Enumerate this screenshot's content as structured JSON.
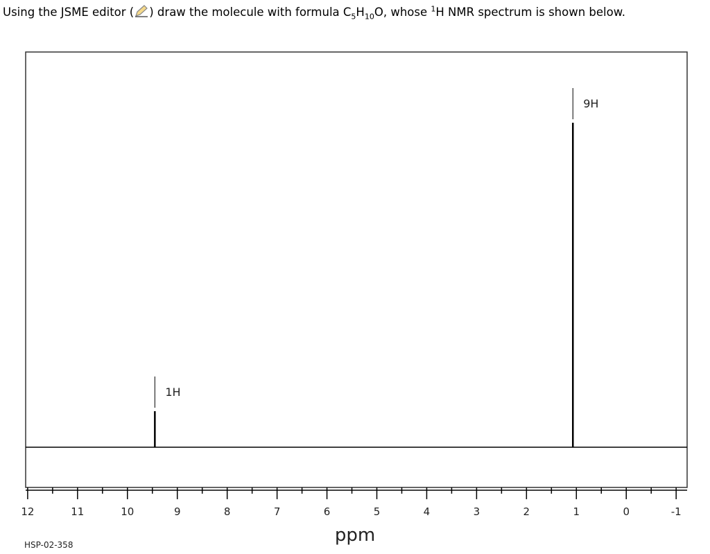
{
  "question": {
    "before_icon": "Using the JSME editor (",
    "after_icon": ") draw the molecule with formula C",
    "sub1": "5",
    "h": "H",
    "sub2": "10",
    "after_formula": "O, whose ",
    "sup": "1",
    "after_sup": "H NMR spectrum is shown below."
  },
  "chart_data": {
    "type": "nmr",
    "x": [
      9.45,
      1.07
    ],
    "values": [
      1,
      9
    ],
    "value_labels": [
      "1H",
      "9H"
    ],
    "color": "#000000",
    "xlim": [
      12.04,
      -1.22
    ],
    "ylim": [
      0,
      10
    ],
    "xticks": [
      12,
      11,
      10,
      9,
      8,
      7,
      6,
      5,
      4,
      3,
      2,
      1,
      0,
      -1
    ],
    "xminorticks": [
      11.5,
      10.5,
      9.5,
      8.5,
      7.5,
      6.5,
      5.5,
      4.5,
      3.5,
      2.5,
      1.5,
      0.5,
      -0.5
    ],
    "xlabel": "ppm",
    "source": "HSP-02-358"
  }
}
